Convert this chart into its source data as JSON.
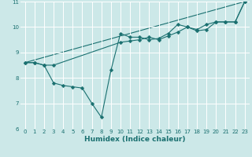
{
  "xlabel": "Humidex (Indice chaleur)",
  "bg_color": "#cce8e8",
  "grid_color": "#ffffff",
  "line_color": "#1a7070",
  "xlim": [
    -0.5,
    23.5
  ],
  "ylim": [
    6,
    11
  ],
  "xticks": [
    0,
    1,
    2,
    3,
    4,
    5,
    6,
    7,
    8,
    9,
    10,
    11,
    12,
    13,
    14,
    15,
    16,
    17,
    18,
    19,
    20,
    21,
    22,
    23
  ],
  "yticks": [
    6,
    7,
    8,
    9,
    10,
    11
  ],
  "line1_x": [
    0,
    1,
    2,
    3,
    4,
    5,
    6,
    7,
    8,
    9,
    10,
    11,
    12,
    13,
    14,
    15,
    16,
    17,
    18,
    19,
    20,
    21,
    22,
    23
  ],
  "line1_y": [
    8.6,
    8.6,
    8.5,
    7.8,
    7.7,
    7.65,
    7.6,
    7.0,
    6.45,
    8.3,
    9.75,
    9.6,
    9.6,
    9.5,
    9.55,
    9.75,
    10.1,
    10.0,
    9.9,
    10.1,
    10.2,
    10.2,
    10.2,
    11.0
  ],
  "line2_x": [
    0,
    1,
    2,
    3,
    10,
    11,
    12,
    13,
    14,
    15,
    16,
    17,
    18,
    19,
    20,
    21,
    22,
    23
  ],
  "line2_y": [
    8.6,
    8.6,
    8.5,
    8.5,
    9.4,
    9.45,
    9.5,
    9.6,
    9.5,
    9.65,
    9.8,
    10.0,
    9.85,
    9.9,
    10.2,
    10.2,
    10.2,
    11.0
  ],
  "line3_x": [
    0,
    23
  ],
  "line3_y": [
    8.6,
    11.0
  ],
  "marker_size": 2.5,
  "linewidth": 0.8
}
